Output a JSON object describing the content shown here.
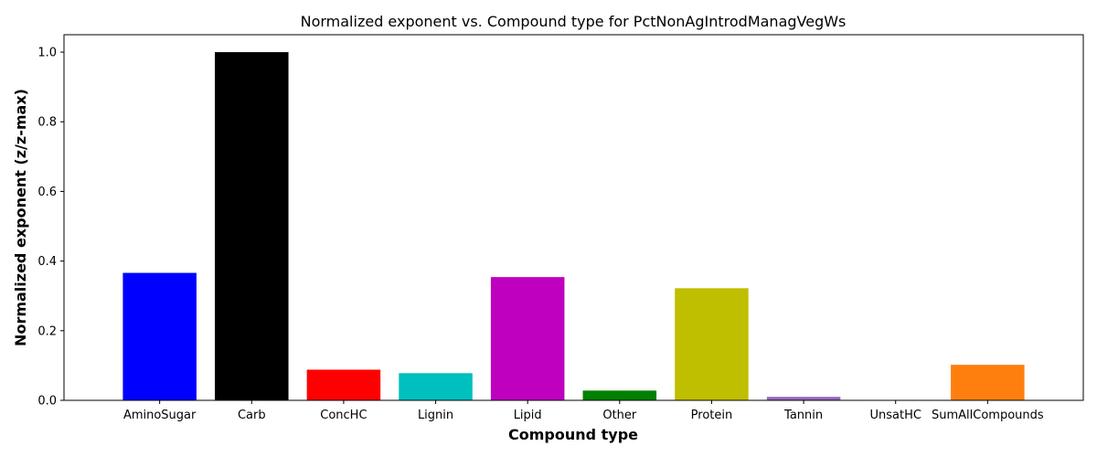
{
  "chart_data": {
    "type": "bar",
    "title": "Normalized exponent vs. Compound type for PctNonAgIntrodManagVegWs",
    "xlabel": "Compound type",
    "ylabel": "Normalized exponent (z/z-max)",
    "ylim": [
      0,
      1.05
    ],
    "yticks": [
      "0.0",
      "0.2",
      "0.4",
      "0.6",
      "0.8",
      "1.0"
    ],
    "grid": false,
    "categories": [
      "AminoSugar",
      "Carb",
      "ConcHC",
      "Lignin",
      "Lipid",
      "Other",
      "Protein",
      "Tannin",
      "UnsatHC",
      "SumAllCompounds"
    ],
    "values": [
      0.366,
      1.0,
      0.088,
      0.078,
      0.354,
      0.028,
      0.322,
      0.01,
      0.0,
      0.102
    ],
    "colors": [
      "#0000ff",
      "#000000",
      "#ff0000",
      "#00bfbf",
      "#bf00bf",
      "#008000",
      "#bfbf00",
      "#9467bd",
      "#8c564b",
      "#ff7f0e"
    ]
  }
}
